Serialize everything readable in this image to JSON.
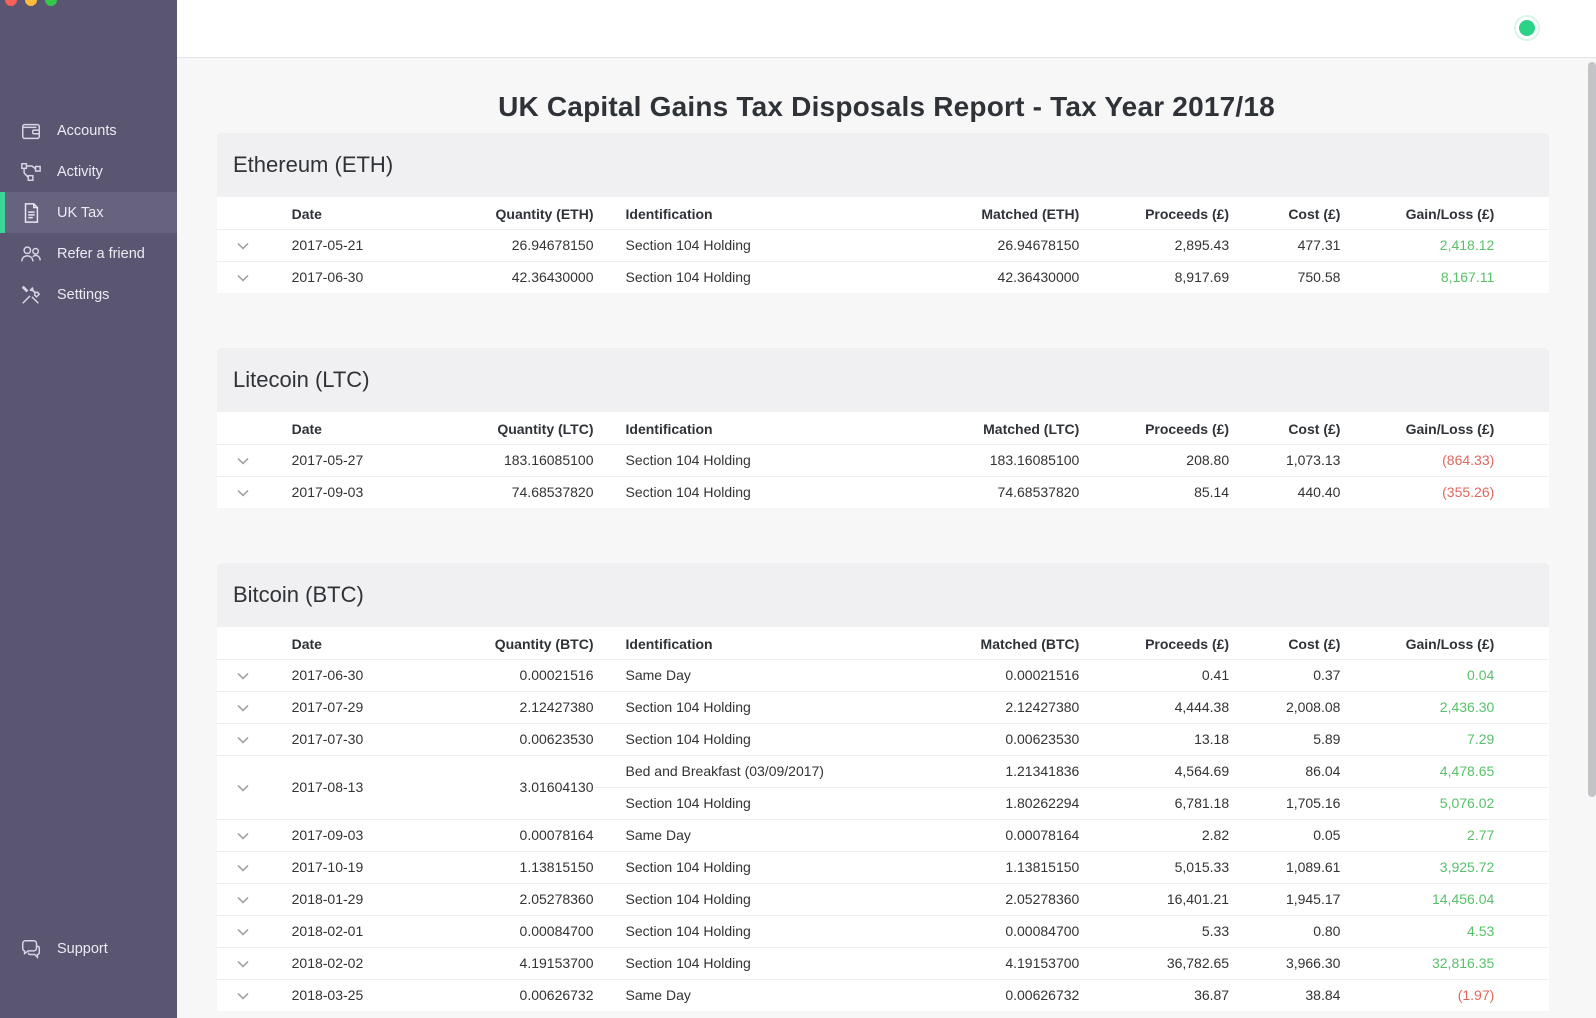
{
  "nav": {
    "items": [
      {
        "label": "Accounts",
        "icon": "wallet-icon"
      },
      {
        "label": "Activity",
        "icon": "activity-icon"
      },
      {
        "label": "UK Tax",
        "icon": "document-icon",
        "active": true
      },
      {
        "label": "Refer a friend",
        "icon": "users-icon"
      },
      {
        "label": "Settings",
        "icon": "tools-icon"
      }
    ],
    "support": {
      "label": "Support",
      "icon": "chat-icon"
    }
  },
  "report": {
    "title": "UK Capital Gains Tax Disposals Report - Tax Year 2017/18"
  },
  "columns": {
    "date": "Date",
    "identification": "Identification",
    "proceeds": "Proceeds (£)",
    "cost": "Cost (£)",
    "gain_loss": "Gain/Loss (£)"
  },
  "sections": [
    {
      "title": "Ethereum (ETH)",
      "quantity_header": "Quantity (ETH)",
      "matched_header": "Matched (ETH)",
      "rows": [
        {
          "date": "2017-05-21",
          "quantity": "26.94678150",
          "lines": [
            {
              "identification": "Section 104 Holding",
              "matched": "26.94678150",
              "proceeds": "2,895.43",
              "cost": "477.31",
              "gain_loss": "2,418.12",
              "type": "gain"
            }
          ]
        },
        {
          "date": "2017-06-30",
          "quantity": "42.36430000",
          "lines": [
            {
              "identification": "Section 104 Holding",
              "matched": "42.36430000",
              "proceeds": "8,917.69",
              "cost": "750.58",
              "gain_loss": "8,167.11",
              "type": "gain"
            }
          ]
        }
      ]
    },
    {
      "title": "Litecoin (LTC)",
      "quantity_header": "Quantity (LTC)",
      "matched_header": "Matched (LTC)",
      "rows": [
        {
          "date": "2017-05-27",
          "quantity": "183.16085100",
          "lines": [
            {
              "identification": "Section 104 Holding",
              "matched": "183.16085100",
              "proceeds": "208.80",
              "cost": "1,073.13",
              "gain_loss": "(864.33)",
              "type": "loss"
            }
          ]
        },
        {
          "date": "2017-09-03",
          "quantity": "74.68537820",
          "lines": [
            {
              "identification": "Section 104 Holding",
              "matched": "74.68537820",
              "proceeds": "85.14",
              "cost": "440.40",
              "gain_loss": "(355.26)",
              "type": "loss"
            }
          ]
        }
      ]
    },
    {
      "title": "Bitcoin (BTC)",
      "quantity_header": "Quantity (BTC)",
      "matched_header": "Matched (BTC)",
      "rows": [
        {
          "date": "2017-06-30",
          "quantity": "0.00021516",
          "lines": [
            {
              "identification": "Same Day",
              "matched": "0.00021516",
              "proceeds": "0.41",
              "cost": "0.37",
              "gain_loss": "0.04",
              "type": "gain"
            }
          ]
        },
        {
          "date": "2017-07-29",
          "quantity": "2.12427380",
          "lines": [
            {
              "identification": "Section 104 Holding",
              "matched": "2.12427380",
              "proceeds": "4,444.38",
              "cost": "2,008.08",
              "gain_loss": "2,436.30",
              "type": "gain"
            }
          ]
        },
        {
          "date": "2017-07-30",
          "quantity": "0.00623530",
          "lines": [
            {
              "identification": "Section 104 Holding",
              "matched": "0.00623530",
              "proceeds": "13.18",
              "cost": "5.89",
              "gain_loss": "7.29",
              "type": "gain"
            }
          ]
        },
        {
          "date": "2017-08-13",
          "quantity": "3.01604130",
          "lines": [
            {
              "identification": "Bed and Breakfast (03/09/2017)",
              "matched": "1.21341836",
              "proceeds": "4,564.69",
              "cost": "86.04",
              "gain_loss": "4,478.65",
              "type": "gain"
            },
            {
              "identification": "Section 104 Holding",
              "matched": "1.80262294",
              "proceeds": "6,781.18",
              "cost": "1,705.16",
              "gain_loss": "5,076.02",
              "type": "gain"
            }
          ]
        },
        {
          "date": "2017-09-03",
          "quantity": "0.00078164",
          "lines": [
            {
              "identification": "Same Day",
              "matched": "0.00078164",
              "proceeds": "2.82",
              "cost": "0.05",
              "gain_loss": "2.77",
              "type": "gain"
            }
          ]
        },
        {
          "date": "2017-10-19",
          "quantity": "1.13815150",
          "lines": [
            {
              "identification": "Section 104 Holding",
              "matched": "1.13815150",
              "proceeds": "5,015.33",
              "cost": "1,089.61",
              "gain_loss": "3,925.72",
              "type": "gain"
            }
          ]
        },
        {
          "date": "2018-01-29",
          "quantity": "2.05278360",
          "lines": [
            {
              "identification": "Section 104 Holding",
              "matched": "2.05278360",
              "proceeds": "16,401.21",
              "cost": "1,945.17",
              "gain_loss": "14,456.04",
              "type": "gain"
            }
          ]
        },
        {
          "date": "2018-02-01",
          "quantity": "0.00084700",
          "lines": [
            {
              "identification": "Section 104 Holding",
              "matched": "0.00084700",
              "proceeds": "5.33",
              "cost": "0.80",
              "gain_loss": "4.53",
              "type": "gain"
            }
          ]
        },
        {
          "date": "2018-02-02",
          "quantity": "4.19153700",
          "lines": [
            {
              "identification": "Section 104 Holding",
              "matched": "4.19153700",
              "proceeds": "36,782.65",
              "cost": "3,966.30",
              "gain_loss": "32,816.35",
              "type": "gain"
            }
          ]
        },
        {
          "date": "2018-03-25",
          "quantity": "0.00626732",
          "lines": [
            {
              "identification": "Same Day",
              "matched": "0.00626732",
              "proceeds": "36.87",
              "cost": "38.84",
              "gain_loss": "(1.97)",
              "type": "loss"
            }
          ]
        }
      ]
    }
  ],
  "colors": {
    "sidebar": "#5a5671",
    "active_accent": "#3ed598",
    "gain": "#59c16b",
    "loss": "#e0675f",
    "status": "#2bd389"
  }
}
